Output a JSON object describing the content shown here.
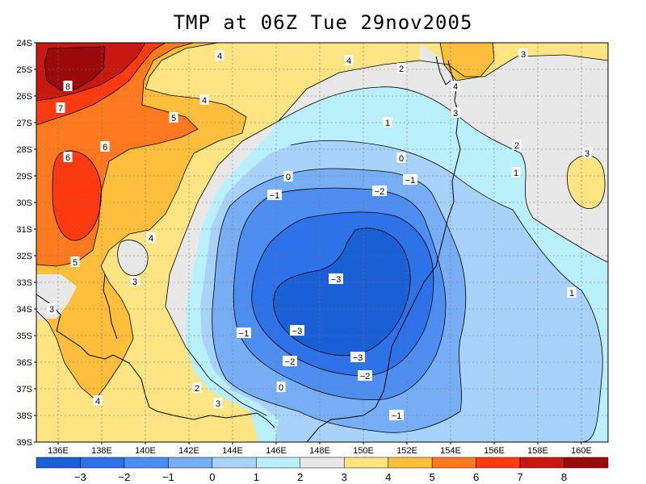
{
  "title": "TMP at 06Z Tue 29nov2005",
  "lat_labels": [
    "24S",
    "25S",
    "26S",
    "27S",
    "28S",
    "29S",
    "30S",
    "31S",
    "32S",
    "33S",
    "34S",
    "35S",
    "36S",
    "37S",
    "38S",
    "39S"
  ],
  "lon_labels": [
    "136E",
    "138E",
    "140E",
    "142E",
    "144E",
    "146E",
    "148E",
    "150E",
    "152E",
    "154E",
    "156E",
    "158E",
    "160E"
  ],
  "colorbar": {
    "colors": [
      "#1a5fd6",
      "#2d72e8",
      "#4d8ef0",
      "#78aef5",
      "#a8d2fa",
      "#b9f0fc",
      "#e8e8e8",
      "#ffe484",
      "#ffbe3c",
      "#ff7a1e",
      "#ff3a10",
      "#c81810",
      "#9a0a0a"
    ],
    "labels": [
      "−3",
      "−2",
      "−1",
      "0",
      "1",
      "2",
      "3",
      "4",
      "5",
      "6",
      "7",
      "8"
    ]
  },
  "contour_labels": [
    {
      "text": "8"
    },
    {
      "text": "7"
    },
    {
      "text": "6"
    },
    {
      "text": "6"
    },
    {
      "text": "5"
    },
    {
      "text": "5"
    },
    {
      "text": "4"
    },
    {
      "text": "4"
    },
    {
      "text": "4"
    },
    {
      "text": "4"
    },
    {
      "text": "4"
    },
    {
      "text": "4"
    },
    {
      "text": "3"
    },
    {
      "text": "3"
    },
    {
      "text": "3"
    },
    {
      "text": "3"
    },
    {
      "text": "3"
    },
    {
      "text": "3"
    },
    {
      "text": "2"
    },
    {
      "text": "2"
    },
    {
      "text": "2"
    },
    {
      "text": "1"
    },
    {
      "text": "1"
    },
    {
      "text": "1"
    },
    {
      "text": "0"
    },
    {
      "text": "0"
    },
    {
      "text": "0"
    },
    {
      "text": "−1"
    },
    {
      "text": "−1"
    },
    {
      "text": "−1"
    },
    {
      "text": "−1"
    },
    {
      "text": "−2"
    },
    {
      "text": "−2"
    },
    {
      "text": "−2"
    },
    {
      "text": "−3"
    },
    {
      "text": "−3"
    },
    {
      "text": "−3"
    }
  ]
}
